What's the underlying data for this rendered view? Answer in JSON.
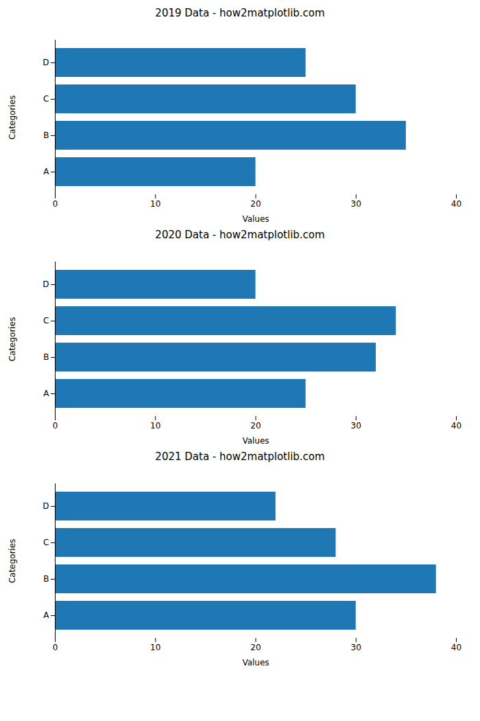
{
  "chart_data": [
    {
      "type": "bar",
      "orientation": "horizontal",
      "title": "2019 Data - how2matplotlib.com",
      "categories": [
        "A",
        "B",
        "C",
        "D"
      ],
      "values": [
        20,
        35,
        30,
        25
      ],
      "color": "#1f77b4",
      "xlabel": "Values",
      "ylabel": "Categories",
      "xlim": [
        0,
        40
      ],
      "xticks": [
        0,
        10,
        20,
        30,
        40
      ],
      "grid": false
    },
    {
      "type": "bar",
      "orientation": "horizontal",
      "title": "2020 Data - how2matplotlib.com",
      "categories": [
        "A",
        "B",
        "C",
        "D"
      ],
      "values": [
        25,
        32,
        34,
        20
      ],
      "color": "#1f77b4",
      "xlabel": "Values",
      "ylabel": "Categories",
      "xlim": [
        0,
        40
      ],
      "xticks": [
        0,
        10,
        20,
        30,
        40
      ],
      "grid": false
    },
    {
      "type": "bar",
      "orientation": "horizontal",
      "title": "2021 Data - how2matplotlib.com",
      "categories": [
        "A",
        "B",
        "C",
        "D"
      ],
      "values": [
        30,
        38,
        28,
        22
      ],
      "color": "#1f77b4",
      "xlabel": "Values",
      "ylabel": "Categories",
      "xlim": [
        0,
        40
      ],
      "xticks": [
        0,
        10,
        20,
        30,
        40
      ],
      "grid": false
    }
  ]
}
